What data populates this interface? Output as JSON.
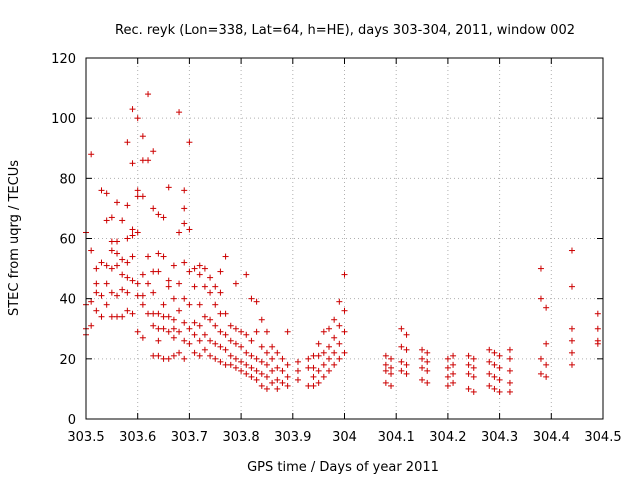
{
  "chart_data": {
    "type": "scatter",
    "title": "Rec. reyk (Lon=338, Lat=64, h=HE), days 303-304, 2011, window 002",
    "xlabel": "GPS time / Days of year 2011",
    "ylabel": "STEC from uqrg / TECUs",
    "xlim": [
      303.5,
      304.5
    ],
    "ylim": [
      0,
      120
    ],
    "xticks": [
      "303.5",
      "303.6",
      "303.7",
      "303.8",
      "303.9",
      "304",
      "304.1",
      "304.2",
      "304.3",
      "304.4",
      "304.5"
    ],
    "yticks": [
      "0",
      "20",
      "40",
      "60",
      "80",
      "100",
      "120"
    ],
    "grid": true,
    "marker": "plus",
    "color": "#cc0000",
    "points": [
      [
        303.5,
        62
      ],
      [
        303.5,
        38
      ],
      [
        303.5,
        30
      ],
      [
        303.5,
        28
      ],
      [
        303.51,
        88
      ],
      [
        303.51,
        56
      ],
      [
        303.51,
        39
      ],
      [
        303.51,
        31
      ],
      [
        303.52,
        50
      ],
      [
        303.52,
        45
      ],
      [
        303.52,
        42
      ],
      [
        303.52,
        36
      ],
      [
        303.53,
        76
      ],
      [
        303.53,
        52
      ],
      [
        303.53,
        41
      ],
      [
        303.53,
        34
      ],
      [
        303.54,
        75
      ],
      [
        303.54,
        66
      ],
      [
        303.54,
        51
      ],
      [
        303.54,
        45
      ],
      [
        303.54,
        38
      ],
      [
        303.55,
        67
      ],
      [
        303.55,
        59
      ],
      [
        303.55,
        56
      ],
      [
        303.55,
        50
      ],
      [
        303.55,
        42
      ],
      [
        303.55,
        34
      ],
      [
        303.56,
        72
      ],
      [
        303.56,
        59
      ],
      [
        303.56,
        55
      ],
      [
        303.56,
        51
      ],
      [
        303.56,
        41
      ],
      [
        303.56,
        34
      ],
      [
        303.57,
        66
      ],
      [
        303.57,
        53
      ],
      [
        303.57,
        48
      ],
      [
        303.57,
        43
      ],
      [
        303.57,
        34
      ],
      [
        303.58,
        92
      ],
      [
        303.58,
        71
      ],
      [
        303.58,
        60
      ],
      [
        303.58,
        52
      ],
      [
        303.58,
        47
      ],
      [
        303.58,
        42
      ],
      [
        303.58,
        36
      ],
      [
        303.59,
        103
      ],
      [
        303.59,
        85
      ],
      [
        303.59,
        63
      ],
      [
        303.59,
        61
      ],
      [
        303.59,
        54
      ],
      [
        303.59,
        46
      ],
      [
        303.59,
        35
      ],
      [
        303.6,
        100
      ],
      [
        303.6,
        76
      ],
      [
        303.6,
        74
      ],
      [
        303.6,
        62
      ],
      [
        303.6,
        45
      ],
      [
        303.6,
        41
      ],
      [
        303.6,
        29
      ],
      [
        303.61,
        94
      ],
      [
        303.61,
        86
      ],
      [
        303.61,
        74
      ],
      [
        303.61,
        48
      ],
      [
        303.61,
        41
      ],
      [
        303.61,
        38
      ],
      [
        303.61,
        27
      ],
      [
        303.62,
        108
      ],
      [
        303.62,
        86
      ],
      [
        303.62,
        54
      ],
      [
        303.62,
        45
      ],
      [
        303.62,
        35
      ],
      [
        303.63,
        89
      ],
      [
        303.63,
        70
      ],
      [
        303.63,
        49
      ],
      [
        303.63,
        42
      ],
      [
        303.63,
        35
      ],
      [
        303.63,
        31
      ],
      [
        303.63,
        21
      ],
      [
        303.64,
        68
      ],
      [
        303.64,
        55
      ],
      [
        303.64,
        49
      ],
      [
        303.64,
        35
      ],
      [
        303.64,
        30
      ],
      [
        303.64,
        26
      ],
      [
        303.64,
        21
      ],
      [
        303.65,
        67
      ],
      [
        303.65,
        54
      ],
      [
        303.65,
        38
      ],
      [
        303.65,
        34
      ],
      [
        303.65,
        30
      ],
      [
        303.65,
        20
      ],
      [
        303.66,
        77
      ],
      [
        303.66,
        46
      ],
      [
        303.66,
        44
      ],
      [
        303.66,
        34
      ],
      [
        303.66,
        29
      ],
      [
        303.66,
        20
      ],
      [
        303.67,
        51
      ],
      [
        303.67,
        40
      ],
      [
        303.67,
        33
      ],
      [
        303.67,
        30
      ],
      [
        303.67,
        27
      ],
      [
        303.67,
        21
      ],
      [
        303.68,
        102
      ],
      [
        303.68,
        62
      ],
      [
        303.68,
        45
      ],
      [
        303.68,
        36
      ],
      [
        303.68,
        29
      ],
      [
        303.68,
        22
      ],
      [
        303.69,
        76
      ],
      [
        303.69,
        70
      ],
      [
        303.69,
        65
      ],
      [
        303.69,
        52
      ],
      [
        303.69,
        40
      ],
      [
        303.69,
        32
      ],
      [
        303.69,
        26
      ],
      [
        303.69,
        20
      ],
      [
        303.7,
        92
      ],
      [
        303.7,
        63
      ],
      [
        303.7,
        49
      ],
      [
        303.7,
        38
      ],
      [
        303.7,
        30
      ],
      [
        303.7,
        25
      ],
      [
        303.71,
        50
      ],
      [
        303.71,
        44
      ],
      [
        303.71,
        32
      ],
      [
        303.71,
        28
      ],
      [
        303.71,
        22
      ],
      [
        303.72,
        51
      ],
      [
        303.72,
        48
      ],
      [
        303.72,
        38
      ],
      [
        303.72,
        31
      ],
      [
        303.72,
        26
      ],
      [
        303.72,
        21
      ],
      [
        303.73,
        50
      ],
      [
        303.73,
        44
      ],
      [
        303.73,
        34
      ],
      [
        303.73,
        28
      ],
      [
        303.73,
        23
      ],
      [
        303.74,
        47
      ],
      [
        303.74,
        42
      ],
      [
        303.74,
        33
      ],
      [
        303.74,
        26
      ],
      [
        303.74,
        21
      ],
      [
        303.75,
        44
      ],
      [
        303.75,
        38
      ],
      [
        303.75,
        31
      ],
      [
        303.75,
        25
      ],
      [
        303.75,
        20
      ],
      [
        303.76,
        49
      ],
      [
        303.76,
        42
      ],
      [
        303.76,
        35
      ],
      [
        303.76,
        29
      ],
      [
        303.76,
        24
      ],
      [
        303.76,
        19
      ],
      [
        303.77,
        54
      ],
      [
        303.77,
        35
      ],
      [
        303.77,
        28
      ],
      [
        303.77,
        23
      ],
      [
        303.77,
        18
      ],
      [
        303.78,
        31
      ],
      [
        303.78,
        26
      ],
      [
        303.78,
        21
      ],
      [
        303.78,
        18
      ],
      [
        303.79,
        45
      ],
      [
        303.79,
        30
      ],
      [
        303.79,
        25
      ],
      [
        303.79,
        20
      ],
      [
        303.79,
        17
      ],
      [
        303.8,
        29
      ],
      [
        303.8,
        24
      ],
      [
        303.8,
        19
      ],
      [
        303.8,
        16
      ],
      [
        303.81,
        48
      ],
      [
        303.81,
        28
      ],
      [
        303.81,
        22
      ],
      [
        303.81,
        18
      ],
      [
        303.81,
        15
      ],
      [
        303.82,
        40
      ],
      [
        303.82,
        26
      ],
      [
        303.82,
        21
      ],
      [
        303.82,
        17
      ],
      [
        303.82,
        14
      ],
      [
        303.83,
        39
      ],
      [
        303.83,
        29
      ],
      [
        303.83,
        20
      ],
      [
        303.83,
        16
      ],
      [
        303.83,
        13
      ],
      [
        303.84,
        33
      ],
      [
        303.84,
        24
      ],
      [
        303.84,
        19
      ],
      [
        303.84,
        15
      ],
      [
        303.84,
        11
      ],
      [
        303.85,
        29
      ],
      [
        303.85,
        22
      ],
      [
        303.85,
        18
      ],
      [
        303.85,
        14
      ],
      [
        303.85,
        10
      ],
      [
        303.86,
        24
      ],
      [
        303.86,
        20
      ],
      [
        303.86,
        16
      ],
      [
        303.86,
        12
      ],
      [
        303.87,
        22
      ],
      [
        303.87,
        17
      ],
      [
        303.87,
        13
      ],
      [
        303.87,
        10
      ],
      [
        303.88,
        20
      ],
      [
        303.88,
        16
      ],
      [
        303.88,
        12
      ],
      [
        303.89,
        29
      ],
      [
        303.89,
        18
      ],
      [
        303.89,
        14
      ],
      [
        303.89,
        11
      ],
      [
        303.91,
        19
      ],
      [
        303.91,
        16
      ],
      [
        303.91,
        13
      ],
      [
        303.93,
        20
      ],
      [
        303.93,
        17
      ],
      [
        303.93,
        11
      ],
      [
        303.94,
        21
      ],
      [
        303.94,
        17
      ],
      [
        303.94,
        14
      ],
      [
        303.94,
        11
      ],
      [
        303.95,
        25
      ],
      [
        303.95,
        21
      ],
      [
        303.95,
        16
      ],
      [
        303.95,
        12
      ],
      [
        303.96,
        29
      ],
      [
        303.96,
        22
      ],
      [
        303.96,
        18
      ],
      [
        303.96,
        14
      ],
      [
        303.97,
        30
      ],
      [
        303.97,
        24
      ],
      [
        303.97,
        20
      ],
      [
        303.97,
        16
      ],
      [
        303.98,
        33
      ],
      [
        303.98,
        27
      ],
      [
        303.98,
        22
      ],
      [
        303.98,
        18
      ],
      [
        303.99,
        39
      ],
      [
        303.99,
        31
      ],
      [
        303.99,
        25
      ],
      [
        303.99,
        20
      ],
      [
        304.0,
        48
      ],
      [
        304.0,
        36
      ],
      [
        304.0,
        29
      ],
      [
        304.0,
        22
      ],
      [
        304.08,
        21
      ],
      [
        304.08,
        18
      ],
      [
        304.08,
        16
      ],
      [
        304.08,
        12
      ],
      [
        304.09,
        20
      ],
      [
        304.09,
        17
      ],
      [
        304.09,
        15
      ],
      [
        304.09,
        11
      ],
      [
        304.11,
        30
      ],
      [
        304.11,
        24
      ],
      [
        304.11,
        19
      ],
      [
        304.11,
        16
      ],
      [
        304.12,
        28
      ],
      [
        304.12,
        23
      ],
      [
        304.12,
        18
      ],
      [
        304.12,
        15
      ],
      [
        304.15,
        23
      ],
      [
        304.15,
        20
      ],
      [
        304.15,
        17
      ],
      [
        304.15,
        13
      ],
      [
        304.16,
        22
      ],
      [
        304.16,
        19
      ],
      [
        304.16,
        16
      ],
      [
        304.16,
        12
      ],
      [
        304.2,
        20
      ],
      [
        304.2,
        17
      ],
      [
        304.2,
        14
      ],
      [
        304.2,
        11
      ],
      [
        304.21,
        21
      ],
      [
        304.21,
        18
      ],
      [
        304.21,
        15
      ],
      [
        304.21,
        12
      ],
      [
        304.24,
        21
      ],
      [
        304.24,
        18
      ],
      [
        304.24,
        15
      ],
      [
        304.24,
        10
      ],
      [
        304.25,
        20
      ],
      [
        304.25,
        17
      ],
      [
        304.25,
        14
      ],
      [
        304.25,
        9
      ],
      [
        304.28,
        23
      ],
      [
        304.28,
        19
      ],
      [
        304.28,
        15
      ],
      [
        304.28,
        11
      ],
      [
        304.29,
        22
      ],
      [
        304.29,
        18
      ],
      [
        304.29,
        14
      ],
      [
        304.29,
        10
      ],
      [
        304.3,
        21
      ],
      [
        304.3,
        17
      ],
      [
        304.3,
        13
      ],
      [
        304.3,
        9
      ],
      [
        304.32,
        23
      ],
      [
        304.32,
        20
      ],
      [
        304.32,
        16
      ],
      [
        304.32,
        12
      ],
      [
        304.32,
        9
      ],
      [
        304.38,
        50
      ],
      [
        304.38,
        40
      ],
      [
        304.38,
        20
      ],
      [
        304.38,
        15
      ],
      [
        304.39,
        37
      ],
      [
        304.39,
        25
      ],
      [
        304.39,
        18
      ],
      [
        304.39,
        14
      ],
      [
        304.44,
        56
      ],
      [
        304.44,
        44
      ],
      [
        304.44,
        30
      ],
      [
        304.44,
        26
      ],
      [
        304.44,
        22
      ],
      [
        304.44,
        18
      ],
      [
        304.49,
        35
      ],
      [
        304.49,
        30
      ],
      [
        304.49,
        26
      ],
      [
        304.49,
        25
      ]
    ]
  }
}
